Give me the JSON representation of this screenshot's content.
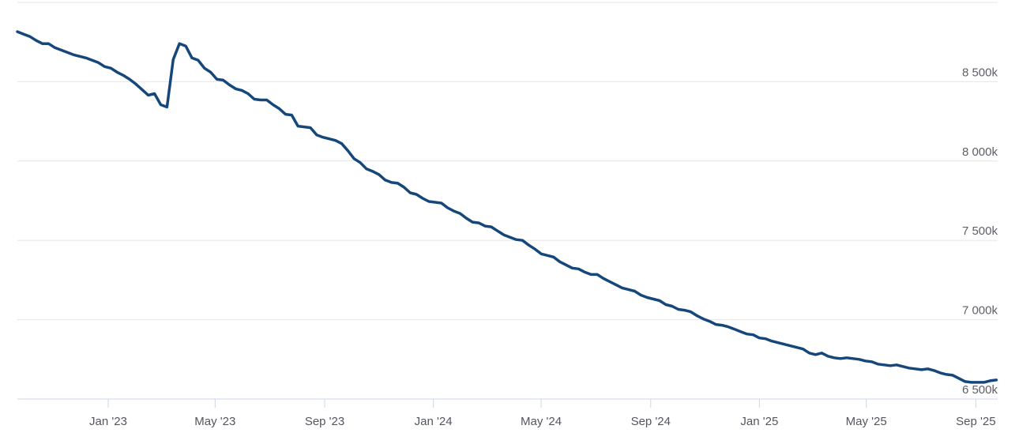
{
  "chart": {
    "background_color": "#ffffff",
    "line_color": "#15477b",
    "grid_color": "#e6e6e6",
    "axis_line_color": "#ccd6eb",
    "tick_color": "#ccd6eb",
    "x_label_color": "#53565e",
    "y_label_color": "#5d6066"
  },
  "chart_data": {
    "type": "line",
    "title": "",
    "xlabel": "",
    "ylabel": "",
    "legend": "none",
    "grid": "horizontal-only",
    "y_axis_side": "right",
    "yaxis": {
      "range": [
        6500,
        9015
      ],
      "ticks": [
        {
          "value": 6500,
          "label": "6 500k"
        },
        {
          "value": 7000,
          "label": "7 000k"
        },
        {
          "value": 7500,
          "label": "7 500k"
        },
        {
          "value": 8000,
          "label": "8 000k"
        },
        {
          "value": 8500,
          "label": "8 500k"
        },
        {
          "value": 9000,
          "label": ""
        }
      ]
    },
    "xaxis": {
      "range": [
        "2022-09-21",
        "2025-09-24"
      ],
      "ticks": [
        {
          "date": "2023-01-01",
          "label": "Jan '23"
        },
        {
          "date": "2023-05-01",
          "label": "May '23"
        },
        {
          "date": "2023-09-01",
          "label": "Sep '23"
        },
        {
          "date": "2024-01-01",
          "label": "Jan '24"
        },
        {
          "date": "2024-05-01",
          "label": "May '24"
        },
        {
          "date": "2024-09-01",
          "label": "Sep '24"
        },
        {
          "date": "2025-01-01",
          "label": "Jan '25"
        },
        {
          "date": "2025-05-01",
          "label": "May '25"
        },
        {
          "date": "2025-09-01",
          "label": "Sep '25"
        }
      ]
    },
    "series": [
      {
        "color": "#15477b",
        "points": [
          [
            "2022-09-21",
            8815
          ],
          [
            "2022-09-28",
            8800
          ],
          [
            "2022-10-05",
            8785
          ],
          [
            "2022-10-12",
            8760
          ],
          [
            "2022-10-19",
            8740
          ],
          [
            "2022-10-26",
            8740
          ],
          [
            "2022-11-02",
            8715
          ],
          [
            "2022-11-09",
            8700
          ],
          [
            "2022-11-16",
            8685
          ],
          [
            "2022-11-23",
            8670
          ],
          [
            "2022-11-30",
            8660
          ],
          [
            "2022-12-07",
            8650
          ],
          [
            "2022-12-14",
            8635
          ],
          [
            "2022-12-21",
            8620
          ],
          [
            "2022-12-28",
            8595
          ],
          [
            "2023-01-04",
            8585
          ],
          [
            "2023-01-11",
            8560
          ],
          [
            "2023-01-18",
            8540
          ],
          [
            "2023-01-25",
            8515
          ],
          [
            "2023-02-01",
            8485
          ],
          [
            "2023-02-08",
            8450
          ],
          [
            "2023-02-15",
            8415
          ],
          [
            "2023-02-22",
            8425
          ],
          [
            "2023-03-01",
            8355
          ],
          [
            "2023-03-08",
            8340
          ],
          [
            "2023-03-15",
            8640
          ],
          [
            "2023-03-22",
            8740
          ],
          [
            "2023-03-29",
            8725
          ],
          [
            "2023-04-05",
            8650
          ],
          [
            "2023-04-12",
            8635
          ],
          [
            "2023-04-19",
            8585
          ],
          [
            "2023-04-26",
            8560
          ],
          [
            "2023-05-03",
            8515
          ],
          [
            "2023-05-10",
            8510
          ],
          [
            "2023-05-17",
            8480
          ],
          [
            "2023-05-24",
            8455
          ],
          [
            "2023-05-31",
            8445
          ],
          [
            "2023-06-07",
            8425
          ],
          [
            "2023-06-14",
            8390
          ],
          [
            "2023-06-21",
            8385
          ],
          [
            "2023-06-28",
            8385
          ],
          [
            "2023-07-05",
            8355
          ],
          [
            "2023-07-12",
            8330
          ],
          [
            "2023-07-19",
            8295
          ],
          [
            "2023-07-26",
            8290
          ],
          [
            "2023-08-02",
            8220
          ],
          [
            "2023-08-09",
            8215
          ],
          [
            "2023-08-16",
            8210
          ],
          [
            "2023-08-23",
            8165
          ],
          [
            "2023-08-30",
            8150
          ],
          [
            "2023-09-06",
            8140
          ],
          [
            "2023-09-13",
            8130
          ],
          [
            "2023-09-20",
            8110
          ],
          [
            "2023-09-27",
            8065
          ],
          [
            "2023-10-04",
            8015
          ],
          [
            "2023-10-11",
            7990
          ],
          [
            "2023-10-18",
            7950
          ],
          [
            "2023-10-25",
            7935
          ],
          [
            "2023-11-01",
            7915
          ],
          [
            "2023-11-08",
            7880
          ],
          [
            "2023-11-15",
            7865
          ],
          [
            "2023-11-22",
            7860
          ],
          [
            "2023-11-29",
            7835
          ],
          [
            "2023-12-06",
            7800
          ],
          [
            "2023-12-13",
            7790
          ],
          [
            "2023-12-20",
            7765
          ],
          [
            "2023-12-27",
            7745
          ],
          [
            "2024-01-03",
            7740
          ],
          [
            "2024-01-10",
            7735
          ],
          [
            "2024-01-17",
            7705
          ],
          [
            "2024-01-24",
            7685
          ],
          [
            "2024-01-31",
            7670
          ],
          [
            "2024-02-07",
            7640
          ],
          [
            "2024-02-14",
            7615
          ],
          [
            "2024-02-21",
            7610
          ],
          [
            "2024-02-28",
            7590
          ],
          [
            "2024-03-06",
            7585
          ],
          [
            "2024-03-13",
            7560
          ],
          [
            "2024-03-20",
            7535
          ],
          [
            "2024-03-27",
            7520
          ],
          [
            "2024-04-03",
            7505
          ],
          [
            "2024-04-10",
            7500
          ],
          [
            "2024-04-17",
            7470
          ],
          [
            "2024-04-24",
            7445
          ],
          [
            "2024-05-01",
            7415
          ],
          [
            "2024-05-08",
            7405
          ],
          [
            "2024-05-15",
            7395
          ],
          [
            "2024-05-22",
            7365
          ],
          [
            "2024-05-29",
            7345
          ],
          [
            "2024-06-05",
            7325
          ],
          [
            "2024-06-12",
            7320
          ],
          [
            "2024-06-19",
            7300
          ],
          [
            "2024-06-26",
            7285
          ],
          [
            "2024-07-03",
            7285
          ],
          [
            "2024-07-10",
            7260
          ],
          [
            "2024-07-17",
            7240
          ],
          [
            "2024-07-24",
            7220
          ],
          [
            "2024-07-31",
            7200
          ],
          [
            "2024-08-07",
            7190
          ],
          [
            "2024-08-14",
            7180
          ],
          [
            "2024-08-21",
            7155
          ],
          [
            "2024-08-28",
            7140
          ],
          [
            "2024-09-04",
            7130
          ],
          [
            "2024-09-11",
            7120
          ],
          [
            "2024-09-18",
            7095
          ],
          [
            "2024-09-25",
            7085
          ],
          [
            "2024-10-02",
            7065
          ],
          [
            "2024-10-09",
            7060
          ],
          [
            "2024-10-16",
            7050
          ],
          [
            "2024-10-23",
            7025
          ],
          [
            "2024-10-30",
            7005
          ],
          [
            "2024-11-06",
            6990
          ],
          [
            "2024-11-13",
            6970
          ],
          [
            "2024-11-20",
            6965
          ],
          [
            "2024-11-27",
            6955
          ],
          [
            "2024-12-04",
            6940
          ],
          [
            "2024-12-11",
            6925
          ],
          [
            "2024-12-18",
            6910
          ],
          [
            "2024-12-25",
            6905
          ],
          [
            "2025-01-01",
            6885
          ],
          [
            "2025-01-08",
            6880
          ],
          [
            "2025-01-15",
            6865
          ],
          [
            "2025-01-22",
            6855
          ],
          [
            "2025-01-29",
            6845
          ],
          [
            "2025-02-05",
            6835
          ],
          [
            "2025-02-12",
            6825
          ],
          [
            "2025-02-19",
            6815
          ],
          [
            "2025-02-26",
            6790
          ],
          [
            "2025-03-05",
            6780
          ],
          [
            "2025-03-12",
            6790
          ],
          [
            "2025-03-19",
            6770
          ],
          [
            "2025-03-26",
            6760
          ],
          [
            "2025-04-02",
            6755
          ],
          [
            "2025-04-09",
            6760
          ],
          [
            "2025-04-16",
            6755
          ],
          [
            "2025-04-23",
            6750
          ],
          [
            "2025-04-30",
            6740
          ],
          [
            "2025-05-07",
            6735
          ],
          [
            "2025-05-14",
            6720
          ],
          [
            "2025-05-21",
            6715
          ],
          [
            "2025-05-28",
            6710
          ],
          [
            "2025-06-04",
            6715
          ],
          [
            "2025-06-11",
            6705
          ],
          [
            "2025-06-18",
            6695
          ],
          [
            "2025-06-25",
            6690
          ],
          [
            "2025-07-02",
            6685
          ],
          [
            "2025-07-09",
            6690
          ],
          [
            "2025-07-16",
            6680
          ],
          [
            "2025-07-23",
            6665
          ],
          [
            "2025-07-30",
            6655
          ],
          [
            "2025-08-06",
            6650
          ],
          [
            "2025-08-13",
            6630
          ],
          [
            "2025-08-20",
            6610
          ],
          [
            "2025-08-27",
            6605
          ],
          [
            "2025-09-03",
            6605
          ],
          [
            "2025-09-10",
            6605
          ],
          [
            "2025-09-17",
            6615
          ],
          [
            "2025-09-24",
            6620
          ]
        ]
      }
    ]
  }
}
